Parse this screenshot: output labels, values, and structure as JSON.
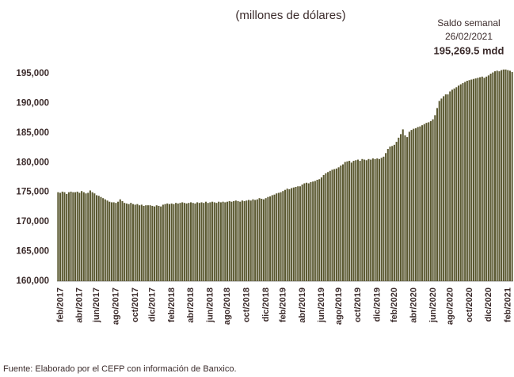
{
  "chart_data": {
    "type": "bar",
    "subtitle": "(millones  de  dólares)",
    "annotation": {
      "label": "Saldo semanal",
      "date": "26/02/2021",
      "value": "195,269.5  mdd"
    },
    "source": "Fuente: Elaborado por el CEFP con información de Banxico.",
    "color": "#5a5830",
    "grid": false,
    "ylim": [
      160000,
      196500
    ],
    "yticks": [
      {
        "value": 160000,
        "label": "160,000"
      },
      {
        "value": 165000,
        "label": "165,000"
      },
      {
        "value": 170000,
        "label": "170,000"
      },
      {
        "value": 175000,
        "label": "175,000"
      },
      {
        "value": 180000,
        "label": "180,000"
      },
      {
        "value": 185000,
        "label": "185,000"
      },
      {
        "value": 190000,
        "label": "190,000"
      },
      {
        "value": 195000,
        "label": "195,000"
      }
    ],
    "categories": [
      "feb/2017",
      null,
      null,
      null,
      null,
      null,
      null,
      null,
      null,
      "abr/2017",
      null,
      null,
      null,
      null,
      null,
      null,
      null,
      "jun/2017",
      null,
      null,
      null,
      null,
      null,
      null,
      null,
      null,
      "ago/2017",
      null,
      null,
      null,
      null,
      null,
      null,
      null,
      null,
      "oct/2017",
      null,
      null,
      null,
      null,
      null,
      null,
      null,
      "dic/2017",
      null,
      null,
      null,
      null,
      null,
      null,
      null,
      null,
      "feb/2018",
      null,
      null,
      null,
      null,
      null,
      null,
      null,
      null,
      "abr/2018",
      null,
      null,
      null,
      null,
      null,
      null,
      null,
      null,
      "jun/2018",
      null,
      null,
      null,
      null,
      null,
      null,
      null,
      "ago/2018",
      null,
      null,
      null,
      null,
      null,
      null,
      null,
      null,
      "oct/2018",
      null,
      null,
      null,
      null,
      null,
      null,
      null,
      null,
      "dic/2018",
      null,
      null,
      null,
      null,
      null,
      null,
      null,
      "feb/2019",
      null,
      null,
      null,
      null,
      null,
      null,
      null,
      null,
      "abr/2019",
      null,
      null,
      null,
      null,
      null,
      null,
      null,
      null,
      "jun/2019",
      null,
      null,
      null,
      null,
      null,
      null,
      null,
      "ago/2019",
      null,
      null,
      null,
      null,
      null,
      null,
      null,
      null,
      "oct/2019",
      null,
      null,
      null,
      null,
      null,
      null,
      null,
      null,
      "dic/2019",
      null,
      null,
      null,
      null,
      null,
      null,
      null,
      "feb/2020",
      null,
      null,
      null,
      null,
      null,
      null,
      null,
      null,
      "abr/2020",
      null,
      null,
      null,
      null,
      null,
      null,
      null,
      null,
      "jun/2020",
      null,
      null,
      null,
      null,
      null,
      null,
      null,
      "ago/2020",
      null,
      null,
      null,
      null,
      null,
      null,
      null,
      null,
      "oct/2020",
      null,
      null,
      null,
      null,
      null,
      null,
      null,
      null,
      "dic/2020",
      null,
      null,
      null,
      null,
      null,
      null,
      null,
      null,
      "feb/2021",
      null,
      null,
      null
    ],
    "values": [
      175000,
      174900,
      175100,
      175000,
      174700,
      175000,
      175100,
      175000,
      175000,
      175100,
      174900,
      175200,
      175000,
      174800,
      174900,
      175300,
      175000,
      174800,
      174500,
      174400,
      174200,
      174000,
      173800,
      173600,
      173400,
      173300,
      173300,
      173200,
      173400,
      173800,
      173500,
      173200,
      173100,
      173000,
      173200,
      173000,
      172900,
      173000,
      172800,
      172900,
      172700,
      172800,
      172800,
      172800,
      172700,
      172600,
      172800,
      172700,
      172600,
      172900,
      173000,
      173100,
      173000,
      173100,
      173000,
      173200,
      173100,
      173200,
      173300,
      173200,
      173100,
      173200,
      173300,
      173200,
      173100,
      173300,
      173200,
      173300,
      173200,
      173400,
      173200,
      173300,
      173400,
      173300,
      173200,
      173400,
      173300,
      173400,
      173300,
      173400,
      173500,
      173400,
      173500,
      173600,
      173500,
      173400,
      173600,
      173500,
      173600,
      173700,
      173600,
      173800,
      173700,
      173800,
      174000,
      173900,
      173800,
      174000,
      174200,
      174300,
      174500,
      174600,
      174800,
      174900,
      175000,
      175200,
      175400,
      175600,
      175500,
      175700,
      175800,
      175900,
      176000,
      176000,
      176300,
      176500,
      176600,
      176500,
      176700,
      176800,
      176900,
      177100,
      177200,
      177500,
      177900,
      178200,
      178400,
      178600,
      178800,
      178900,
      179000,
      179200,
      179500,
      179700,
      180100,
      180200,
      180300,
      180000,
      180300,
      180400,
      180500,
      180300,
      180600,
      180500,
      180400,
      180600,
      180500,
      180700,
      180600,
      180700,
      180600,
      180800,
      181000,
      181600,
      182300,
      182700,
      182800,
      183000,
      183500,
      184200,
      184800,
      185600,
      184600,
      184300,
      185200,
      185500,
      185700,
      185800,
      186000,
      186100,
      186300,
      186500,
      186700,
      186800,
      187000,
      187300,
      188000,
      189200,
      190400,
      190800,
      191200,
      191500,
      191500,
      192000,
      192300,
      192500,
      192700,
      193000,
      193200,
      193400,
      193600,
      193800,
      193900,
      194000,
      194100,
      194200,
      194300,
      194400,
      194500,
      194300,
      194500,
      194700,
      195000,
      195200,
      195400,
      195500,
      195400,
      195600,
      195700,
      195700,
      195600,
      195500,
      195269.5
    ]
  }
}
